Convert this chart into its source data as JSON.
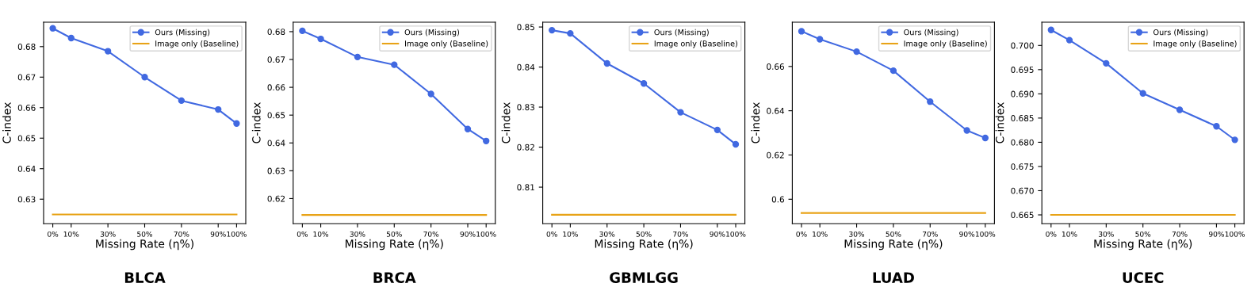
{
  "chart_data": [
    {
      "type": "line",
      "title": "BLCA",
      "xlabel": "Missing Rate (η%)",
      "ylabel": "C-index",
      "x": [
        0,
        10,
        30,
        50,
        70,
        90,
        100
      ],
      "xlim": [
        -5,
        105
      ],
      "xticks": [
        {
          "value": 0,
          "label": "0%"
        },
        {
          "value": 10,
          "label": "10%"
        },
        {
          "value": 30,
          "label": "30%"
        },
        {
          "value": 50,
          "label": "50%"
        },
        {
          "value": 70,
          "label": "70%"
        },
        {
          "value": 90,
          "label": "90%"
        },
        {
          "value": 100,
          "label": "100%"
        }
      ],
      "ylim": [
        0.622,
        0.688
      ],
      "yticks": [
        0.63,
        0.64,
        0.65,
        0.66,
        0.67,
        0.68
      ],
      "legend": "top right",
      "grid": false,
      "series": [
        {
          "name": "Ours (Missing)",
          "color": "#4169e1",
          "marker": "circle",
          "values": [
            0.686,
            0.6828,
            0.6785,
            0.67,
            0.6623,
            0.6594,
            0.6548
          ]
        },
        {
          "name": "Image only (Baseline)",
          "color": "#e8a317",
          "marker": "none",
          "values": [
            0.625,
            0.625,
            0.625,
            0.625,
            0.625,
            0.625,
            0.625
          ]
        }
      ]
    },
    {
      "type": "line",
      "title": "BRCA",
      "xlabel": "Missing Rate (η%)",
      "ylabel": "C-index",
      "x": [
        0,
        10,
        30,
        50,
        70,
        90,
        100
      ],
      "xlim": [
        -5,
        105
      ],
      "xticks": [
        {
          "value": 0,
          "label": "0%"
        },
        {
          "value": 10,
          "label": "10%"
        },
        {
          "value": 30,
          "label": "30%"
        },
        {
          "value": 50,
          "label": "50%"
        },
        {
          "value": 70,
          "label": "70%"
        },
        {
          "value": 90,
          "label": "90%"
        },
        {
          "value": 100,
          "label": "100%"
        }
      ],
      "ylim": [
        0.611,
        0.6834
      ],
      "yticks": [
        0.62,
        0.63,
        0.64,
        0.65,
        0.66,
        0.67,
        0.68
      ],
      "legend": "top right",
      "grid": false,
      "series": [
        {
          "name": "Ours (Missing)",
          "color": "#4169e1",
          "marker": "circle",
          "values": [
            0.6803,
            0.6774,
            0.6709,
            0.6681,
            0.6576,
            0.645,
            0.6407
          ]
        },
        {
          "name": "Image only (Baseline)",
          "color": "#e8a317",
          "marker": "none",
          "values": [
            0.6141,
            0.6141,
            0.6141,
            0.6141,
            0.6141,
            0.6141,
            0.6141
          ]
        }
      ]
    },
    {
      "type": "line",
      "title": "GBMLGG",
      "xlabel": "Missing Rate (η%)",
      "ylabel": "C-index",
      "x": [
        0,
        10,
        30,
        50,
        70,
        90,
        100
      ],
      "xlim": [
        -5,
        105
      ],
      "xticks": [
        {
          "value": 0,
          "label": "0%"
        },
        {
          "value": 10,
          "label": "10%"
        },
        {
          "value": 30,
          "label": "30%"
        },
        {
          "value": 50,
          "label": "50%"
        },
        {
          "value": 70,
          "label": "70%"
        },
        {
          "value": 90,
          "label": "90%"
        },
        {
          "value": 100,
          "label": "100%"
        }
      ],
      "ylim": [
        0.8009,
        0.8512
      ],
      "yticks": [
        0.81,
        0.82,
        0.83,
        0.84,
        0.85
      ],
      "legend": "top right",
      "grid": false,
      "series": [
        {
          "name": "Ours (Missing)",
          "color": "#4169e1",
          "marker": "circle",
          "values": [
            0.8492,
            0.8484,
            0.8409,
            0.8359,
            0.8287,
            0.8243,
            0.8207
          ]
        },
        {
          "name": "Image only (Baseline)",
          "color": "#e8a317",
          "marker": "none",
          "values": [
            0.8031,
            0.8031,
            0.8031,
            0.8031,
            0.8031,
            0.8031,
            0.8031
          ]
        }
      ]
    },
    {
      "type": "line",
      "title": "LUAD",
      "xlabel": "Missing Rate (η%)",
      "ylabel": "C-index",
      "x": [
        0,
        10,
        30,
        50,
        70,
        90,
        100
      ],
      "xlim": [
        -5,
        105
      ],
      "xticks": [
        {
          "value": 0,
          "label": "0%"
        },
        {
          "value": 10,
          "label": "10%"
        },
        {
          "value": 30,
          "label": "30%"
        },
        {
          "value": 50,
          "label": "50%"
        },
        {
          "value": 70,
          "label": "70%"
        },
        {
          "value": 90,
          "label": "90%"
        },
        {
          "value": 100,
          "label": "100%"
        }
      ],
      "ylim": [
        0.589,
        0.68
      ],
      "yticks": [
        0.6,
        0.62,
        0.64,
        0.66
      ],
      "legend": "top right",
      "grid": false,
      "series": [
        {
          "name": "Ours (Missing)",
          "color": "#4169e1",
          "marker": "circle",
          "values": [
            0.6759,
            0.6723,
            0.6667,
            0.6581,
            0.6441,
            0.6311,
            0.6277
          ]
        },
        {
          "name": "Image only (Baseline)",
          "color": "#e8a317",
          "marker": "none",
          "values": [
            0.5938,
            0.5938,
            0.5938,
            0.5938,
            0.5938,
            0.5938,
            0.5938
          ]
        }
      ]
    },
    {
      "type": "line",
      "title": "UCEC",
      "xlabel": "Missing Rate (η%)",
      "ylabel": "C-index",
      "x": [
        0,
        10,
        30,
        50,
        70,
        90,
        100
      ],
      "xlim": [
        -5,
        105
      ],
      "xticks": [
        {
          "value": 0,
          "label": "0%"
        },
        {
          "value": 10,
          "label": "10%"
        },
        {
          "value": 30,
          "label": "30%"
        },
        {
          "value": 50,
          "label": "50%"
        },
        {
          "value": 70,
          "label": "70%"
        },
        {
          "value": 90,
          "label": "90%"
        },
        {
          "value": 100,
          "label": "100%"
        }
      ],
      "ylim": [
        0.6632,
        0.7048
      ],
      "yticks": [
        {
          "value": 0.665,
          "label": "0.665"
        },
        {
          "value": 0.67,
          "label": "0.670"
        },
        {
          "value": 0.675,
          "label": "0.675"
        },
        {
          "value": 0.68,
          "label": "0.680"
        },
        {
          "value": 0.685,
          "label": "0.685"
        },
        {
          "value": 0.69,
          "label": "0.690"
        },
        {
          "value": 0.695,
          "label": "0.695"
        },
        {
          "value": 0.7,
          "label": "0.700"
        }
      ],
      "legend": "top right",
      "grid": false,
      "series": [
        {
          "name": "Ours (Missing)",
          "color": "#4169e1",
          "marker": "circle",
          "values": [
            0.7032,
            0.7011,
            0.6963,
            0.6901,
            0.6867,
            0.6833,
            0.6805
          ]
        },
        {
          "name": "Image only (Baseline)",
          "color": "#e8a317",
          "marker": "none",
          "values": [
            0.665,
            0.665,
            0.665,
            0.665,
            0.665,
            0.665,
            0.665
          ]
        }
      ]
    }
  ]
}
